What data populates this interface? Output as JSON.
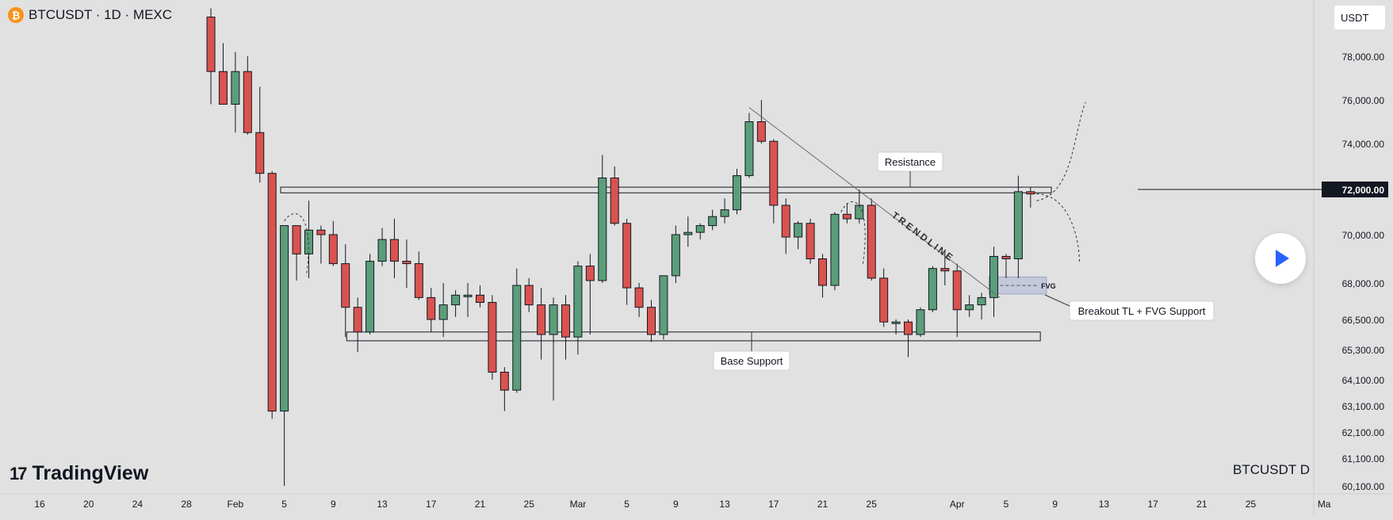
{
  "header": {
    "logo_glyph": "₿",
    "title": "BTCUSDT · 1D · MEXC"
  },
  "currency": "USDT",
  "brand": {
    "mark": "17",
    "name": "TradingView"
  },
  "footer_symbol": "BTCUSDT   D",
  "chart_data": {
    "type": "candlestick",
    "symbol": "BTCUSDT",
    "interval": "1D",
    "exchange": "MEXC",
    "price_axis_labels": [
      "78,000.00",
      "76,000.00",
      "74,000.00",
      "72,000.00",
      "70,000.00",
      "68,000.00",
      "66,500.00",
      "65,300.00",
      "64,100.00",
      "63,100.00",
      "62,100.00",
      "61,100.00",
      "60,100.00"
    ],
    "price_axis_values": [
      78000,
      76000,
      74000,
      72000,
      70000,
      68000,
      66500,
      65300,
      64100,
      63100,
      62100,
      61100,
      60100
    ],
    "highlight_price_label": "72,000.00",
    "highlight_price_value": 72000,
    "time_axis": [
      {
        "label": "16",
        "day": 16
      },
      {
        "label": "20",
        "day": 20
      },
      {
        "label": "24",
        "day": 24
      },
      {
        "label": "28",
        "day": 28
      },
      {
        "label": "Feb",
        "day": 32
      },
      {
        "label": "5",
        "day": 36
      },
      {
        "label": "9",
        "day": 40
      },
      {
        "label": "13",
        "day": 44
      },
      {
        "label": "17",
        "day": 48
      },
      {
        "label": "21",
        "day": 52
      },
      {
        "label": "25",
        "day": 56
      },
      {
        "label": "Mar",
        "day": 60
      },
      {
        "label": "5",
        "day": 64
      },
      {
        "label": "9",
        "day": 68
      },
      {
        "label": "13",
        "day": 72
      },
      {
        "label": "17",
        "day": 76
      },
      {
        "label": "21",
        "day": 80
      },
      {
        "label": "25",
        "day": 84
      },
      {
        "label": "Apr",
        "day": 91
      },
      {
        "label": "5",
        "day": 95
      },
      {
        "label": "9",
        "day": 99
      },
      {
        "label": "13",
        "day": 103
      },
      {
        "label": "17",
        "day": 107
      },
      {
        "label": "21",
        "day": 111
      },
      {
        "label": "25",
        "day": 115
      },
      {
        "label": "Ma",
        "day": 121
      }
    ],
    "candles": [
      {
        "d": 30,
        "o": 79800,
        "h": 80200,
        "l": 75800,
        "c": 77300
      },
      {
        "d": 31,
        "o": 77300,
        "h": 78600,
        "l": 75800,
        "c": 75800
      },
      {
        "d": 32,
        "o": 75800,
        "h": 78200,
        "l": 74500,
        "c": 77300
      },
      {
        "d": 33,
        "o": 77300,
        "h": 78000,
        "l": 74400,
        "c": 74500
      },
      {
        "d": 34,
        "o": 74500,
        "h": 76600,
        "l": 72300,
        "c": 72700
      },
      {
        "d": 35,
        "o": 72700,
        "h": 72800,
        "l": 62600,
        "c": 62900
      },
      {
        "d": 36,
        "o": 62900,
        "h": 70400,
        "l": 60100,
        "c": 70400
      },
      {
        "d": 37,
        "o": 70400,
        "h": 70400,
        "l": 68100,
        "c": 69200
      },
      {
        "d": 38,
        "o": 69200,
        "h": 71500,
        "l": 68200,
        "c": 70200
      },
      {
        "d": 39,
        "o": 70200,
        "h": 70400,
        "l": 68800,
        "c": 70000
      },
      {
        "d": 40,
        "o": 70000,
        "h": 70600,
        "l": 68700,
        "c": 68800
      },
      {
        "d": 41,
        "o": 68800,
        "h": 69600,
        "l": 65800,
        "c": 67000
      },
      {
        "d": 42,
        "o": 67000,
        "h": 67400,
        "l": 65200,
        "c": 66000
      },
      {
        "d": 43,
        "o": 66000,
        "h": 69200,
        "l": 65900,
        "c": 68900
      },
      {
        "d": 44,
        "o": 68900,
        "h": 70300,
        "l": 68700,
        "c": 69800
      },
      {
        "d": 45,
        "o": 69800,
        "h": 70700,
        "l": 68200,
        "c": 68900
      },
      {
        "d": 46,
        "o": 68900,
        "h": 69800,
        "l": 67800,
        "c": 68800
      },
      {
        "d": 47,
        "o": 68800,
        "h": 69300,
        "l": 67300,
        "c": 67400
      },
      {
        "d": 48,
        "o": 67400,
        "h": 67800,
        "l": 66000,
        "c": 66500
      },
      {
        "d": 49,
        "o": 66500,
        "h": 68000,
        "l": 65800,
        "c": 67100
      },
      {
        "d": 50,
        "o": 67100,
        "h": 67700,
        "l": 66600,
        "c": 67500
      },
      {
        "d": 51,
        "o": 67500,
        "h": 68000,
        "l": 66600,
        "c": 67500
      },
      {
        "d": 52,
        "o": 67500,
        "h": 67900,
        "l": 67000,
        "c": 67200
      },
      {
        "d": 53,
        "o": 67200,
        "h": 67500,
        "l": 64100,
        "c": 64400
      },
      {
        "d": 54,
        "o": 64400,
        "h": 64600,
        "l": 62900,
        "c": 63700
      },
      {
        "d": 55,
        "o": 63700,
        "h": 68600,
        "l": 63600,
        "c": 67900
      },
      {
        "d": 56,
        "o": 67900,
        "h": 68200,
        "l": 66800,
        "c": 67100
      },
      {
        "d": 57,
        "o": 67100,
        "h": 67800,
        "l": 64900,
        "c": 65900
      },
      {
        "d": 58,
        "o": 65900,
        "h": 67400,
        "l": 63300,
        "c": 67100
      },
      {
        "d": 59,
        "o": 67100,
        "h": 67500,
        "l": 64900,
        "c": 65800
      },
      {
        "d": 60,
        "o": 65800,
        "h": 68900,
        "l": 65100,
        "c": 68700
      },
      {
        "d": 61,
        "o": 68700,
        "h": 69200,
        "l": 65900,
        "c": 68100
      },
      {
        "d": 62,
        "o": 68100,
        "h": 73500,
        "l": 68000,
        "c": 72500
      },
      {
        "d": 63,
        "o": 72500,
        "h": 73000,
        "l": 70400,
        "c": 70500
      },
      {
        "d": 64,
        "o": 70500,
        "h": 70700,
        "l": 67100,
        "c": 67800
      },
      {
        "d": 65,
        "o": 67800,
        "h": 68000,
        "l": 66600,
        "c": 67000
      },
      {
        "d": 66,
        "o": 67000,
        "h": 67300,
        "l": 65600,
        "c": 65900
      },
      {
        "d": 67,
        "o": 65900,
        "h": 68300,
        "l": 65700,
        "c": 68300
      },
      {
        "d": 68,
        "o": 68300,
        "h": 70400,
        "l": 68000,
        "c": 70000
      },
      {
        "d": 69,
        "o": 70000,
        "h": 70800,
        "l": 69500,
        "c": 70100
      },
      {
        "d": 70,
        "o": 70100,
        "h": 70500,
        "l": 69800,
        "c": 70400
      },
      {
        "d": 71,
        "o": 70400,
        "h": 71100,
        "l": 70200,
        "c": 70800
      },
      {
        "d": 72,
        "o": 70800,
        "h": 71600,
        "l": 70500,
        "c": 71100
      },
      {
        "d": 73,
        "o": 71100,
        "h": 72900,
        "l": 70900,
        "c": 72600
      },
      {
        "d": 74,
        "o": 72600,
        "h": 75400,
        "l": 72500,
        "c": 75000
      },
      {
        "d": 75,
        "o": 75000,
        "h": 76000,
        "l": 74000,
        "c": 74100
      },
      {
        "d": 76,
        "o": 74100,
        "h": 74200,
        "l": 70500,
        "c": 71300
      },
      {
        "d": 77,
        "o": 71300,
        "h": 71600,
        "l": 69200,
        "c": 69900
      },
      {
        "d": 78,
        "o": 69900,
        "h": 70600,
        "l": 69400,
        "c": 70500
      },
      {
        "d": 79,
        "o": 70500,
        "h": 70700,
        "l": 68800,
        "c": 69000
      },
      {
        "d": 80,
        "o": 69000,
        "h": 69200,
        "l": 67400,
        "c": 67900
      },
      {
        "d": 81,
        "o": 67900,
        "h": 71000,
        "l": 67700,
        "c": 70900
      },
      {
        "d": 82,
        "o": 70900,
        "h": 71400,
        "l": 70500,
        "c": 70700
      },
      {
        "d": 83,
        "o": 70700,
        "h": 72000,
        "l": 70500,
        "c": 71300
      },
      {
        "d": 84,
        "o": 71300,
        "h": 71600,
        "l": 68100,
        "c": 68200
      },
      {
        "d": 85,
        "o": 68200,
        "h": 68600,
        "l": 66200,
        "c": 66400
      },
      {
        "d": 86,
        "o": 66400,
        "h": 66500,
        "l": 65900,
        "c": 66400
      },
      {
        "d": 87,
        "o": 66400,
        "h": 66500,
        "l": 65000,
        "c": 65900
      },
      {
        "d": 88,
        "o": 65900,
        "h": 67000,
        "l": 65800,
        "c": 66900
      },
      {
        "d": 89,
        "o": 66900,
        "h": 68700,
        "l": 66800,
        "c": 68600
      },
      {
        "d": 90,
        "o": 68600,
        "h": 69300,
        "l": 67900,
        "c": 68500
      },
      {
        "d": 91,
        "o": 68500,
        "h": 68800,
        "l": 65800,
        "c": 66900
      },
      {
        "d": 92,
        "o": 66900,
        "h": 67500,
        "l": 66600,
        "c": 67100
      },
      {
        "d": 93,
        "o": 67100,
        "h": 67600,
        "l": 66500,
        "c": 67400
      },
      {
        "d": 94,
        "o": 67400,
        "h": 69500,
        "l": 66600,
        "c": 69100
      },
      {
        "d": 95,
        "o": 69100,
        "h": 69200,
        "l": 68200,
        "c": 69000
      },
      {
        "d": 96,
        "o": 69000,
        "h": 72600,
        "l": 68200,
        "c": 71900
      },
      {
        "d": 97,
        "o": 71900,
        "h": 72100,
        "l": 71200,
        "c": 71800
      }
    ],
    "annotations": [
      "Resistance",
      "Base Support",
      "TRENDLINE",
      "FVG",
      "Breakout TL + FVG Support"
    ],
    "resistance_zone": [
      71850,
      72100
    ],
    "support_zone": [
      65650,
      66000
    ],
    "fvg_zone": [
      67550,
      68250
    ]
  }
}
